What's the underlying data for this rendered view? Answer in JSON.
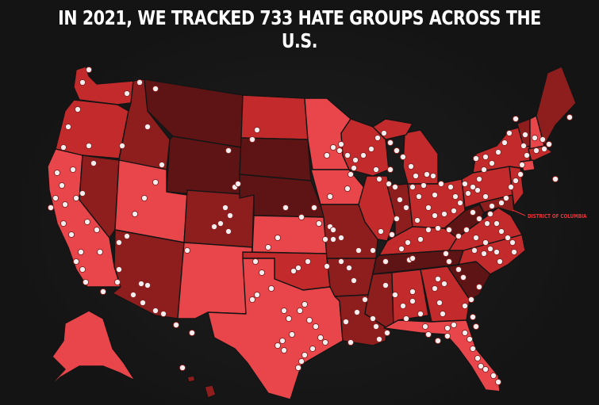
{
  "header": {
    "title": "IN 2021, WE TRACKED 733 HATE GROUPS ACROSS THE U.S."
  },
  "annotations": {
    "dc_label": "DISTRICT OF COLUMBIA"
  },
  "colors": {
    "background": "#141414",
    "shade_darkest": "#5e1414",
    "shade_dark": "#8e1e1e",
    "shade_medium": "#c22a2c",
    "shade_light": "#e8464a",
    "border": "#141414",
    "marker": "#f6eeee"
  }
}
